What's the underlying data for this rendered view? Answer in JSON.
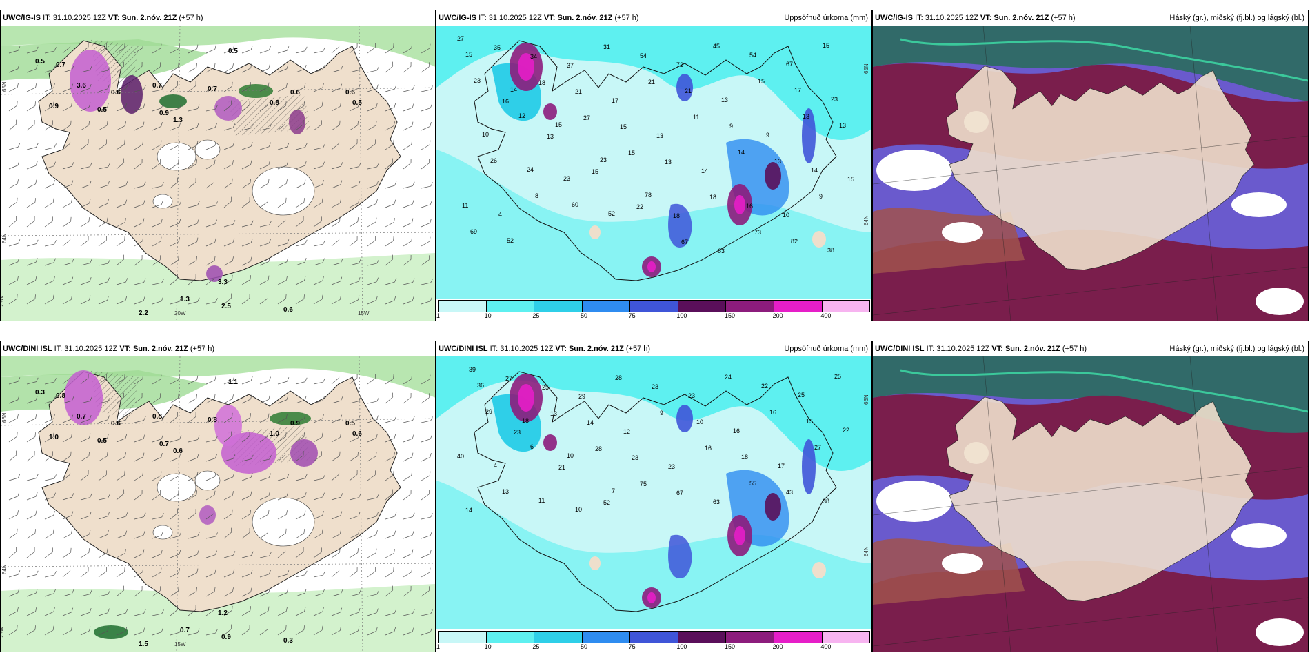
{
  "panels": [
    {
      "model": "UWC/IG-IS",
      "it_label": "IT:",
      "it_value": "31.10.2025 12Z",
      "vt_label": "VT:",
      "vt_value": "Sun. 2.nóv. 21Z",
      "lead": "(+57 h)",
      "title": "",
      "axis": {
        "lat1": "65N",
        "lat2": "64N",
        "lon1": "25W",
        "lon2": "20W",
        "lon3": "15W"
      },
      "labels": [
        "0.5",
        "0.7",
        "3.6",
        "0.6",
        "0.9",
        "0.5",
        "1.3",
        "0.9",
        "0.7",
        "0.8",
        "0.6",
        "0.5",
        "0.7",
        "0.5",
        "0.6",
        "3.3",
        "2.5",
        "0.6",
        "2.2",
        "1.3"
      ]
    },
    {
      "model": "UWC/IG-IS",
      "it_label": "IT:",
      "it_value": "31.10.2025 12Z",
      "vt_label": "VT:",
      "vt_value": "Sun. 2.nóv. 21Z",
      "lead": "(+57 h)",
      "title": "Uppsöfnuð úrkoma (mm)",
      "axis": {
        "lat1": "65N",
        "lat2": "64N"
      },
      "labels": [
        "27",
        "35",
        "34",
        "37",
        "31",
        "54",
        "72",
        "45",
        "54",
        "67",
        "15",
        "15",
        "16",
        "18",
        "21",
        "17",
        "21",
        "21",
        "13",
        "15",
        "17",
        "23",
        "23",
        "14",
        "13",
        "27",
        "15",
        "13",
        "11",
        "9",
        "9",
        "13",
        "13",
        "10",
        "12",
        "15",
        "15",
        "15",
        "13",
        "14",
        "14",
        "13",
        "14",
        "15",
        "26",
        "24",
        "23",
        "23",
        "22",
        "18",
        "18",
        "16",
        "10",
        "9",
        "11",
        "4",
        "8",
        "60",
        "52",
        "78",
        "67",
        "63",
        "73",
        "82",
        "38",
        "69",
        "52"
      ]
    },
    {
      "model": "UWC/IG-IS",
      "it_label": "IT:",
      "it_value": "31.10.2025 12Z",
      "vt_label": "VT:",
      "vt_value": "Sun. 2.nóv. 21Z",
      "lead": "(+57 h)",
      "title": "Háský (gr.), miðský (fj.bl.) og lágský (bl.)"
    },
    {
      "model": "UWC/DINI ISL",
      "it_label": "IT:",
      "it_value": "31.10.2025 12Z",
      "vt_label": "VT:",
      "vt_value": "Sun. 2.nóv. 21Z",
      "lead": "(+57 h)",
      "title": "",
      "axis": {
        "lat1": "66N",
        "lat2": "64N",
        "lon1": "25W",
        "lon2": "15W"
      },
      "labels": [
        "0.3",
        "0.8",
        "0.7",
        "0.6",
        "1.0",
        "0.5",
        "0.6",
        "0.7",
        "0.8",
        "1.0",
        "0.9",
        "1.1",
        "0.8",
        "0.6",
        "0.5",
        "1.2",
        "0.9",
        "0.3",
        "1.5",
        "0.7"
      ]
    },
    {
      "model": "UWC/DINI ISL",
      "it_label": "IT:",
      "it_value": "31.10.2025 12Z",
      "vt_label": "VT:",
      "vt_value": "Sun. 2.nóv. 21Z",
      "lead": "(+57 h)",
      "title": "Uppsöfnuð úrkoma (mm)",
      "axis": {
        "lat1": "66N",
        "lat2": "64N"
      },
      "labels": [
        "39",
        "27",
        "25",
        "29",
        "28",
        "23",
        "23",
        "24",
        "22",
        "25",
        "25",
        "36",
        "23",
        "13",
        "14",
        "12",
        "9",
        "10",
        "16",
        "16",
        "15",
        "22",
        "29",
        "18",
        "21",
        "28",
        "23",
        "23",
        "16",
        "18",
        "17",
        "27",
        "40",
        "4",
        "6",
        "10",
        "52",
        "75",
        "67",
        "63",
        "55",
        "43",
        "38",
        "14",
        "13",
        "11",
        "10",
        "7"
      ]
    },
    {
      "model": "UWC/DINI ISL",
      "it_label": "IT:",
      "it_value": "31.10.2025 12Z",
      "vt_label": "VT:",
      "vt_value": "Sun. 2.nóv. 21Z",
      "lead": "(+57 h)",
      "title": "Háský (gr.), miðský (fj.bl.) og lágský (bl.)"
    }
  ],
  "colorbar": {
    "ticks": [
      "1",
      "10",
      "25",
      "50",
      "75",
      "100",
      "150",
      "200",
      "400"
    ],
    "colors": [
      "#c8f7f7",
      "#5ef0f0",
      "#2fcfe8",
      "#2f8cf0",
      "#3f55d8",
      "#5a0f5a",
      "#8c1c7c",
      "#e61ec8",
      "#f7b4f0"
    ]
  }
}
